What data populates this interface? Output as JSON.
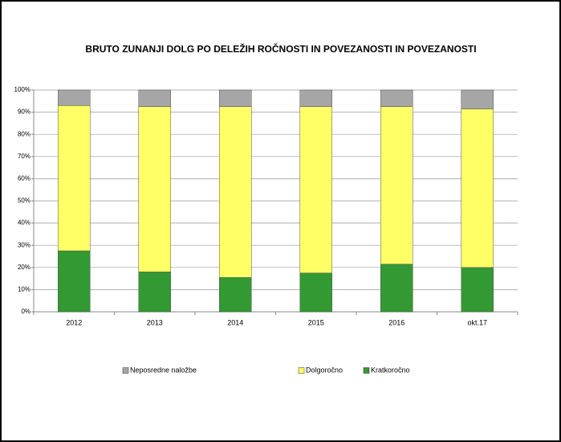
{
  "chart_data": {
    "type": "stacked_bar_percent",
    "title": "BRUTO ZUNANJI DOLG PO DELEŽIH ROČNOSTI IN POVEZANOSTI IN POVEZANOSTI",
    "categories": [
      "2012",
      "2013",
      "2014",
      "2015",
      "2016",
      "okt.17"
    ],
    "series": [
      {
        "name": "Kratkoročno",
        "color": "#339933",
        "values": [
          27.5,
          18,
          15.5,
          17.5,
          21.5,
          20
        ]
      },
      {
        "name": "Dolgoročno",
        "color": "#ffff66",
        "values": [
          65.5,
          74.5,
          77,
          75,
          71,
          71.5
        ]
      },
      {
        "name": "Neposredne naložbe",
        "color": "#a6a6a6",
        "values": [
          7,
          7.5,
          7.5,
          7.5,
          7.5,
          8.5
        ]
      }
    ],
    "ylim": [
      0,
      100
    ],
    "yticks": [
      {
        "value": 0,
        "label": "0%"
      },
      {
        "value": 10,
        "label": "10%"
      },
      {
        "value": 20,
        "label": "20%"
      },
      {
        "value": 30,
        "label": "30%"
      },
      {
        "value": 40,
        "label": "40%"
      },
      {
        "value": 50,
        "label": "50%"
      },
      {
        "value": 60,
        "label": "60%"
      },
      {
        "value": 70,
        "label": "70%"
      },
      {
        "value": 80,
        "label": "80%"
      },
      {
        "value": 90,
        "label": "90%"
      },
      {
        "value": 100,
        "label": "100%"
      }
    ],
    "grid": true,
    "legend": "bottom"
  }
}
